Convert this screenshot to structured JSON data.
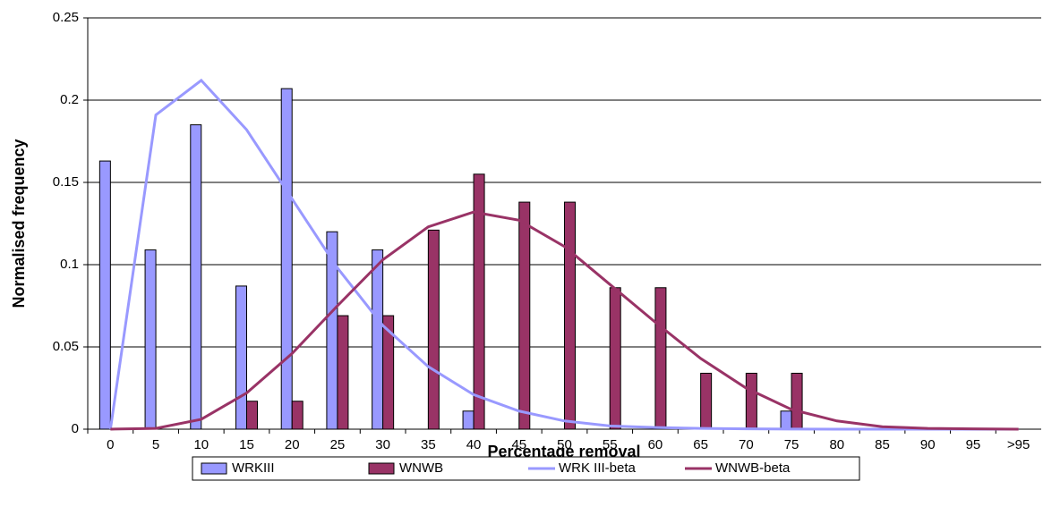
{
  "chart_data": {
    "type": "bar",
    "x_label": "Percentage removal",
    "y_label": "Normalised frequency",
    "categories": [
      "0",
      "5",
      "10",
      "15",
      "20",
      "25",
      "30",
      "35",
      "40",
      "45",
      "50",
      "55",
      "60",
      "65",
      "70",
      "75",
      "80",
      "85",
      "90",
      "95",
      ">95"
    ],
    "series": [
      {
        "name": "WRKIII",
        "type": "bar",
        "color": "#9999ff",
        "values": [
          0.163,
          0.109,
          0.185,
          0.087,
          0.207,
          0.12,
          0.109,
          0,
          0.011,
          0,
          0,
          0,
          0,
          0,
          0,
          0.011,
          0,
          0,
          0,
          0,
          0
        ]
      },
      {
        "name": "WNWB",
        "type": "bar",
        "color": "#993366",
        "values": [
          0,
          0,
          0,
          0.017,
          0.017,
          0.069,
          0.069,
          0.121,
          0.155,
          0.138,
          0.138,
          0.086,
          0.086,
          0.034,
          0.034,
          0.034,
          0,
          0,
          0,
          0,
          0
        ]
      },
      {
        "name": "WRK III-beta",
        "type": "line",
        "color": "#9999ff",
        "values": [
          0,
          0.191,
          0.212,
          0.182,
          0.14,
          0.098,
          0.063,
          0.038,
          0.021,
          0.011,
          0.005,
          0.002,
          0.001,
          0.0005,
          0.0002,
          0.0001,
          0,
          0,
          0,
          0,
          0
        ]
      },
      {
        "name": "WNWB-beta",
        "type": "line",
        "color": "#993366",
        "values": [
          0,
          0.0005,
          0.006,
          0.022,
          0.046,
          0.075,
          0.103,
          0.123,
          0.132,
          0.127,
          0.111,
          0.088,
          0.065,
          0.043,
          0.025,
          0.012,
          0.005,
          0.0015,
          0.0005,
          0.0002,
          0
        ]
      }
    ],
    "ylim": [
      0,
      0.25
    ],
    "yticks": [
      0,
      0.05,
      0.1,
      0.15,
      0.2,
      0.25
    ],
    "grid": true
  }
}
